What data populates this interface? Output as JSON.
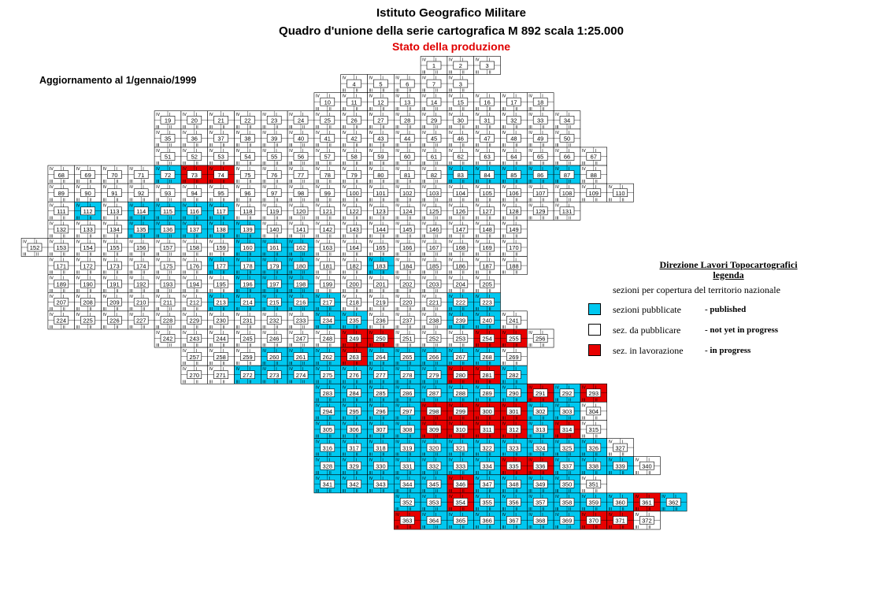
{
  "header": {
    "line1": "Istituto Geografico Militare",
    "line2": "Quadro d'unione della serie cartografica M 892 scala 1:25.000",
    "line3": "Stato della produzione"
  },
  "update_note": "Aggiornamento al 1/gennaio/1999",
  "legend": {
    "title_line1": "Direzione Lavori Topocartografici",
    "title_line2": "legenda",
    "subtitle": "sezioni per copertura del territorio nazionale",
    "items": [
      {
        "label": "sezioni pubblicate",
        "english": "- published",
        "color": "#00c8f0"
      },
      {
        "label": "sez. da pubblicare",
        "english": "- not yet in progress",
        "color": "#ffffff"
      },
      {
        "label": "sez. in lavorazione",
        "english": "- in progress",
        "color": "#e80000"
      }
    ]
  },
  "colors": {
    "published": "#00c8f0",
    "pending": "#ffffff",
    "in_progress": "#e80000",
    "grid": "#000000"
  },
  "quadrant_labels": [
    "I",
    "II",
    "III",
    "IV"
  ],
  "sheets": {
    "published": [
      72,
      73,
      74,
      83,
      84,
      85,
      86,
      87,
      112,
      114,
      115,
      116,
      117,
      135,
      136,
      137,
      138,
      139,
      160,
      161,
      162,
      177,
      178,
      179,
      180,
      183,
      196,
      197,
      198,
      213,
      214,
      215,
      216,
      217,
      222,
      223,
      234,
      235,
      239,
      240,
      249,
      250,
      254,
      255,
      260,
      261,
      262,
      263,
      264,
      265,
      266,
      267,
      268,
      272,
      273,
      274,
      275,
      276,
      277,
      278,
      279,
      280,
      281,
      282,
      283,
      284,
      285,
      286,
      287,
      288,
      289,
      290,
      291,
      292,
      293,
      294,
      295,
      296,
      297,
      298,
      299,
      300,
      301,
      302,
      303,
      305,
      306,
      307,
      308,
      309,
      310,
      311,
      312,
      313,
      314,
      316,
      317,
      318,
      319,
      320,
      321,
      322,
      323,
      324,
      325,
      326,
      328,
      329,
      330,
      331,
      332,
      333,
      334,
      335,
      336,
      337,
      338,
      339,
      341,
      342,
      343,
      344,
      345,
      346,
      347,
      348,
      349,
      350,
      352,
      353,
      354,
      355,
      356,
      357,
      358,
      359,
      360,
      361,
      362,
      363,
      364,
      365,
      366,
      367,
      368,
      369,
      370,
      371
    ],
    "in_progress": [
      73,
      74,
      249,
      250,
      254,
      255,
      263,
      280,
      281,
      291,
      293,
      298,
      299,
      300,
      301,
      309,
      310,
      311,
      312,
      314,
      335,
      336,
      346,
      354,
      361,
      363,
      370,
      371
    ],
    "rows": [
      {
        "sheets": [
          1,
          2,
          3
        ]
      },
      {
        "sheets": [
          4,
          5,
          6,
          7,
          3
        ]
      },
      {
        "sheets": [
          10,
          11,
          12,
          13,
          14,
          15,
          16,
          17,
          18
        ]
      },
      {
        "sheets": [
          19,
          20,
          21,
          22,
          23,
          24,
          25,
          26,
          27,
          28,
          29,
          30,
          31,
          32,
          33,
          34
        ]
      },
      {
        "sheets": [
          35,
          36,
          37,
          38,
          39,
          40,
          41,
          42,
          43,
          44,
          45,
          46,
          47,
          48,
          49,
          50
        ]
      },
      {
        "sheets": [
          51,
          52,
          53,
          54,
          55,
          56,
          57,
          58,
          59,
          60,
          61,
          62,
          63,
          64,
          65,
          66,
          67
        ]
      },
      {
        "sheets": [
          68,
          69,
          70,
          71,
          72,
          73,
          74,
          75,
          76,
          77,
          78,
          79,
          80,
          81,
          82,
          83,
          84,
          85,
          86,
          87,
          88
        ]
      },
      {
        "sheets": [
          89,
          90,
          91,
          92,
          93,
          94,
          95,
          96,
          97,
          98,
          99,
          100,
          101,
          102,
          103,
          104,
          105,
          106,
          107,
          108,
          109,
          110
        ]
      },
      {
        "sheets": [
          111,
          112,
          113,
          114,
          115,
          116,
          117,
          118,
          119,
          120,
          121,
          122,
          123,
          124,
          125,
          126,
          127,
          128,
          129,
          131
        ]
      },
      {
        "sheets": [
          132,
          133,
          134,
          135,
          136,
          137,
          138,
          139,
          140,
          141,
          142,
          143,
          144,
          145,
          146,
          147,
          148,
          149
        ]
      },
      {
        "sheets": [
          152,
          153,
          154,
          155,
          156,
          157,
          158,
          159,
          160,
          161,
          162,
          163,
          164,
          165,
          166,
          167,
          168,
          169,
          170
        ]
      },
      {
        "sheets": [
          171,
          172,
          173,
          174,
          175,
          176,
          177,
          178,
          179,
          180,
          181,
          182,
          183,
          184,
          185,
          186,
          187,
          188
        ]
      },
      {
        "sheets": [
          189,
          190,
          191,
          192,
          193,
          194,
          195,
          196,
          197,
          198,
          199,
          200,
          201,
          202,
          203,
          204,
          205
        ]
      },
      {
        "sheets": [
          207,
          208,
          209,
          210,
          211,
          212,
          213,
          214,
          215,
          216,
          217,
          218,
          219,
          220,
          221,
          222,
          223
        ]
      },
      {
        "sheets": [
          224,
          225,
          226,
          227,
          228,
          229,
          230,
          231,
          232,
          233,
          234,
          235,
          236,
          237,
          238,
          239,
          240,
          241
        ]
      },
      {
        "sheets": [
          242,
          243,
          244,
          245,
          246,
          247,
          248,
          249,
          250,
          251,
          252,
          253,
          254,
          255,
          256
        ]
      },
      {
        "sheets": [
          257,
          258,
          259,
          260,
          261,
          262,
          263,
          264,
          265,
          266,
          267,
          268,
          269
        ]
      },
      {
        "sheets": [
          270,
          271,
          272,
          273,
          274,
          275,
          276,
          277,
          278,
          279,
          280,
          281,
          282
        ]
      },
      {
        "sheets": [
          283,
          284,
          285,
          286,
          287,
          288,
          289,
          290,
          291,
          292,
          293
        ]
      },
      {
        "sheets": [
          294,
          295,
          296,
          297,
          298,
          299,
          300,
          301,
          302,
          303,
          304
        ]
      },
      {
        "sheets": [
          305,
          306,
          307,
          308,
          309,
          310,
          311,
          312,
          313,
          314,
          315
        ]
      },
      {
        "sheets": [
          316,
          317,
          318,
          319,
          320,
          321,
          322,
          323,
          324,
          325,
          326,
          327
        ]
      },
      {
        "sheets": [
          328,
          329,
          330,
          331,
          332,
          333,
          334,
          335,
          336,
          337,
          338,
          339,
          340
        ]
      },
      {
        "sheets": [
          341,
          342,
          343,
          344,
          345,
          346,
          347,
          348,
          349,
          350,
          351
        ]
      },
      {
        "sheets": [
          352,
          353,
          354,
          355,
          356,
          357,
          358,
          359,
          360,
          361,
          362
        ]
      },
      {
        "sheets": [
          363,
          364,
          365,
          366,
          367,
          368,
          369,
          370,
          371,
          372
        ]
      }
    ]
  }
}
